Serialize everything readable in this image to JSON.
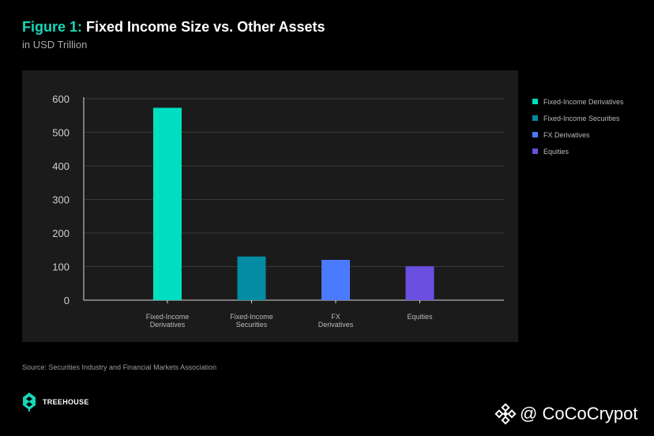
{
  "title": {
    "prefix": "Figure 1:",
    "main": "Fixed Income Size vs. Other Assets"
  },
  "subtitle": "in USD Trillion",
  "source": "Source: Securities Industry and Financial Markets Association",
  "brand": {
    "name": "TREEHOUSE",
    "logo_icon": "treehouse-logo-icon"
  },
  "watermark": {
    "handle": "@ CoCoCrypot",
    "icon": "binance-logo-icon"
  },
  "colors": {
    "background": "#000000",
    "panel": "#1b1b1b",
    "accent": "#17d7b6",
    "grid": "#3a3a3a",
    "axis": "#d8d8d8",
    "tick_text": "#d0d0d0",
    "category_text": "#b9b9b9"
  },
  "legend": [
    {
      "label": "Fixed-Income Derivatives",
      "color": "#00dfc0"
    },
    {
      "label": "Fixed-Income Securities",
      "color": "#038ca3"
    },
    {
      "label": "FX Derivatives",
      "color": "#4a7bff"
    },
    {
      "label": "Equities",
      "color": "#6a4fe0"
    }
  ],
  "chart_data": {
    "type": "bar",
    "categories": [
      [
        "Fixed-Income",
        "Derivatives"
      ],
      [
        "Fixed-Income",
        "Securities"
      ],
      [
        "FX",
        "Derivatives"
      ],
      [
        "Equities"
      ]
    ],
    "values": [
      573,
      130,
      120,
      101
    ],
    "colors": [
      "#00dfc0",
      "#038ca3",
      "#4a7bff",
      "#6a4fe0"
    ],
    "title": "Fixed Income Size vs. Other Assets",
    "ylim": [
      0,
      600
    ],
    "yticks": [
      0,
      100,
      200,
      300,
      400,
      500,
      600
    ],
    "grid": true,
    "legend_position": "right"
  }
}
